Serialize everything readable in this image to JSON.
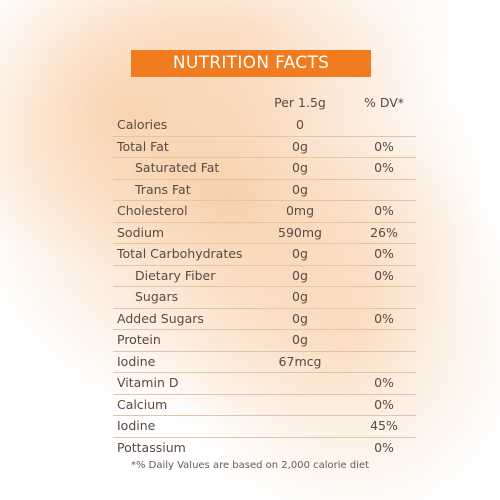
{
  "header": {
    "title": "NUTRITION FACTS"
  },
  "table": {
    "columns": [
      "Per 1.5g",
      "% DV*"
    ],
    "rows": [
      {
        "label": "Calories",
        "amount": "0"
      },
      {
        "label": "Total Fat",
        "amount": "0g",
        "dv": "0%"
      },
      {
        "label": "Saturated Fat",
        "amount": "0g",
        "dv": "0%",
        "sub": true
      },
      {
        "label": "Trans Fat",
        "amount": "0g",
        "sub": true
      },
      {
        "label": "Cholesterol",
        "amount": "0mg",
        "dv": "0%"
      },
      {
        "label": "Sodium",
        "amount": "590mg",
        "dv": "26%"
      },
      {
        "label": "Total Carbohydrates",
        "amount": "0g",
        "dv": "0%"
      },
      {
        "label": "Dietary Fiber",
        "amount": "0g",
        "dv": "0%",
        "sub": true
      },
      {
        "label": "Sugars",
        "amount": "0g",
        "sub": true
      },
      {
        "label": "Added Sugars",
        "amount": "0g",
        "dv": "0%"
      },
      {
        "label": "Protein",
        "amount": "0g"
      },
      {
        "label": "Iodine",
        "amount": "67mcg"
      },
      {
        "label": "Vitamin D",
        "dv": "0%"
      },
      {
        "label": "Calcium",
        "dv": "0%"
      },
      {
        "label": "Iodine",
        "dv": "45%"
      },
      {
        "label": "Pottassium",
        "dv": "0%"
      }
    ],
    "footnote": "*% Daily Values are based on 2,000 calorie diet"
  }
}
